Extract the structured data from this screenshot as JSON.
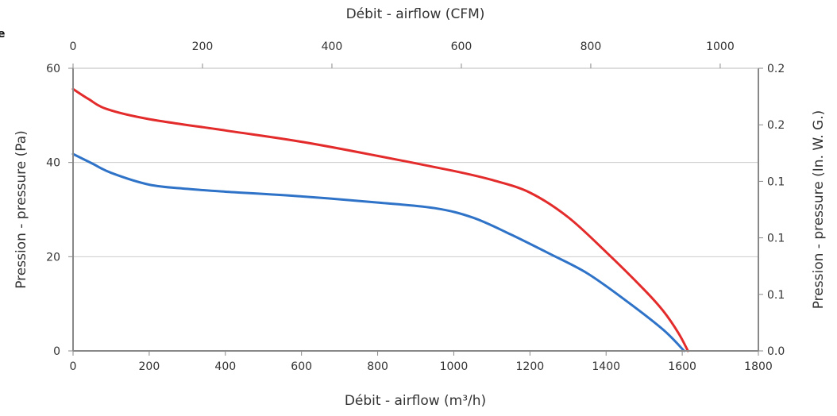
{
  "corner_mark": "e",
  "chart_data": {
    "type": "line",
    "title": "",
    "xlabel": "Débit - airflow (m³/h)",
    "x2label": "Débit - airflow (CFM)",
    "ylabel": "Pression - pressure (Pa)",
    "y2label": "Pression - pressure (In. W. G.)",
    "xlim": [
      0,
      1800
    ],
    "x2lim": [
      0,
      1059
    ],
    "ylim": [
      0,
      60
    ],
    "y2lim": [
      0,
      0.2
    ],
    "x_ticks": [
      "0",
      "200",
      "400",
      "600",
      "800",
      "1000",
      "1200",
      "1400",
      "1600",
      "1800"
    ],
    "x2_ticks": [
      "0",
      "200",
      "400",
      "600",
      "800",
      "1000"
    ],
    "y_ticks": [
      "0",
      "20",
      "40",
      "60"
    ],
    "y2_ticks": [
      "0.0",
      "0.1",
      "0.1",
      "0.1",
      "0.2",
      "0.2"
    ],
    "y2_tick_values": [
      0,
      0.04,
      0.08,
      0.12,
      0.16,
      0.2
    ],
    "grid": true,
    "series": [
      {
        "color": "#e32b2b",
        "x": [
          0,
          40,
          90,
          200,
          400,
          600,
          800,
          1000,
          1100,
          1200,
          1300,
          1400,
          1500,
          1550,
          1590,
          1615
        ],
        "y": [
          55.6,
          53.5,
          51.3,
          49.2,
          46.8,
          44.4,
          41.4,
          38.2,
          36.3,
          33.6,
          28.4,
          21.0,
          13.0,
          8.5,
          3.8,
          0
        ]
      },
      {
        "color": "#2f73c8",
        "x": [
          0,
          50,
          100,
          200,
          300,
          400,
          600,
          800,
          950,
          1050,
          1150,
          1250,
          1350,
          1450,
          1550,
          1605
        ],
        "y": [
          41.8,
          39.8,
          37.8,
          35.3,
          34.4,
          33.8,
          32.8,
          31.5,
          30.3,
          28.3,
          24.7,
          20.7,
          16.5,
          10.8,
          4.5,
          0
        ]
      }
    ]
  }
}
